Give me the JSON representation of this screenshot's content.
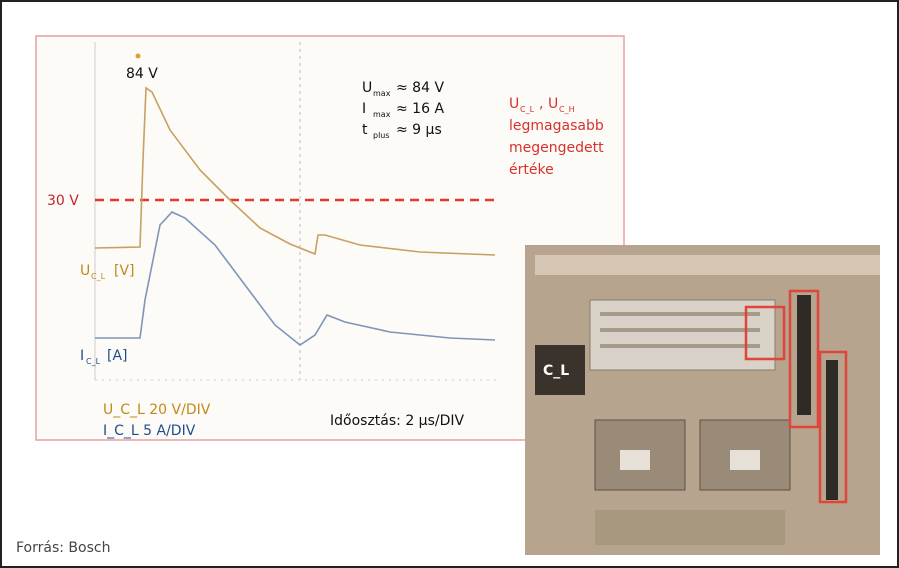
{
  "scope": {
    "peak_label": "84 V",
    "threshold_label": "30 V",
    "specs": [
      {
        "symbol": "U",
        "sub": "max",
        "value": "≈ 84 V"
      },
      {
        "symbol": "I",
        "sub": "max",
        "value": "≈ 16 A"
      },
      {
        "symbol": "t",
        "sub": "plus",
        "value": "≈ 9 µs"
      }
    ],
    "limit_note": {
      "symbols": [
        {
          "symbol": "U",
          "sub": "C_L"
        },
        {
          "symbol": "U",
          "sub": "C_H"
        }
      ],
      "separator": ",",
      "lines": [
        "legmagasabb",
        "megengedett",
        "értéke"
      ]
    },
    "voltage_trace": {
      "symbol": "U",
      "sub": "C_L",
      "unit": "[V]"
    },
    "current_trace": {
      "symbol": "I",
      "sub": "C_L",
      "unit": "[A]"
    },
    "scales": [
      "U_C_L 20 V/DIV",
      "I_C_L 5 A/DIV"
    ],
    "timebase": "Időosztás: 2 µs/DIV"
  },
  "chip": {
    "label": "C_L"
  },
  "source": "Forrás: Bosch"
}
